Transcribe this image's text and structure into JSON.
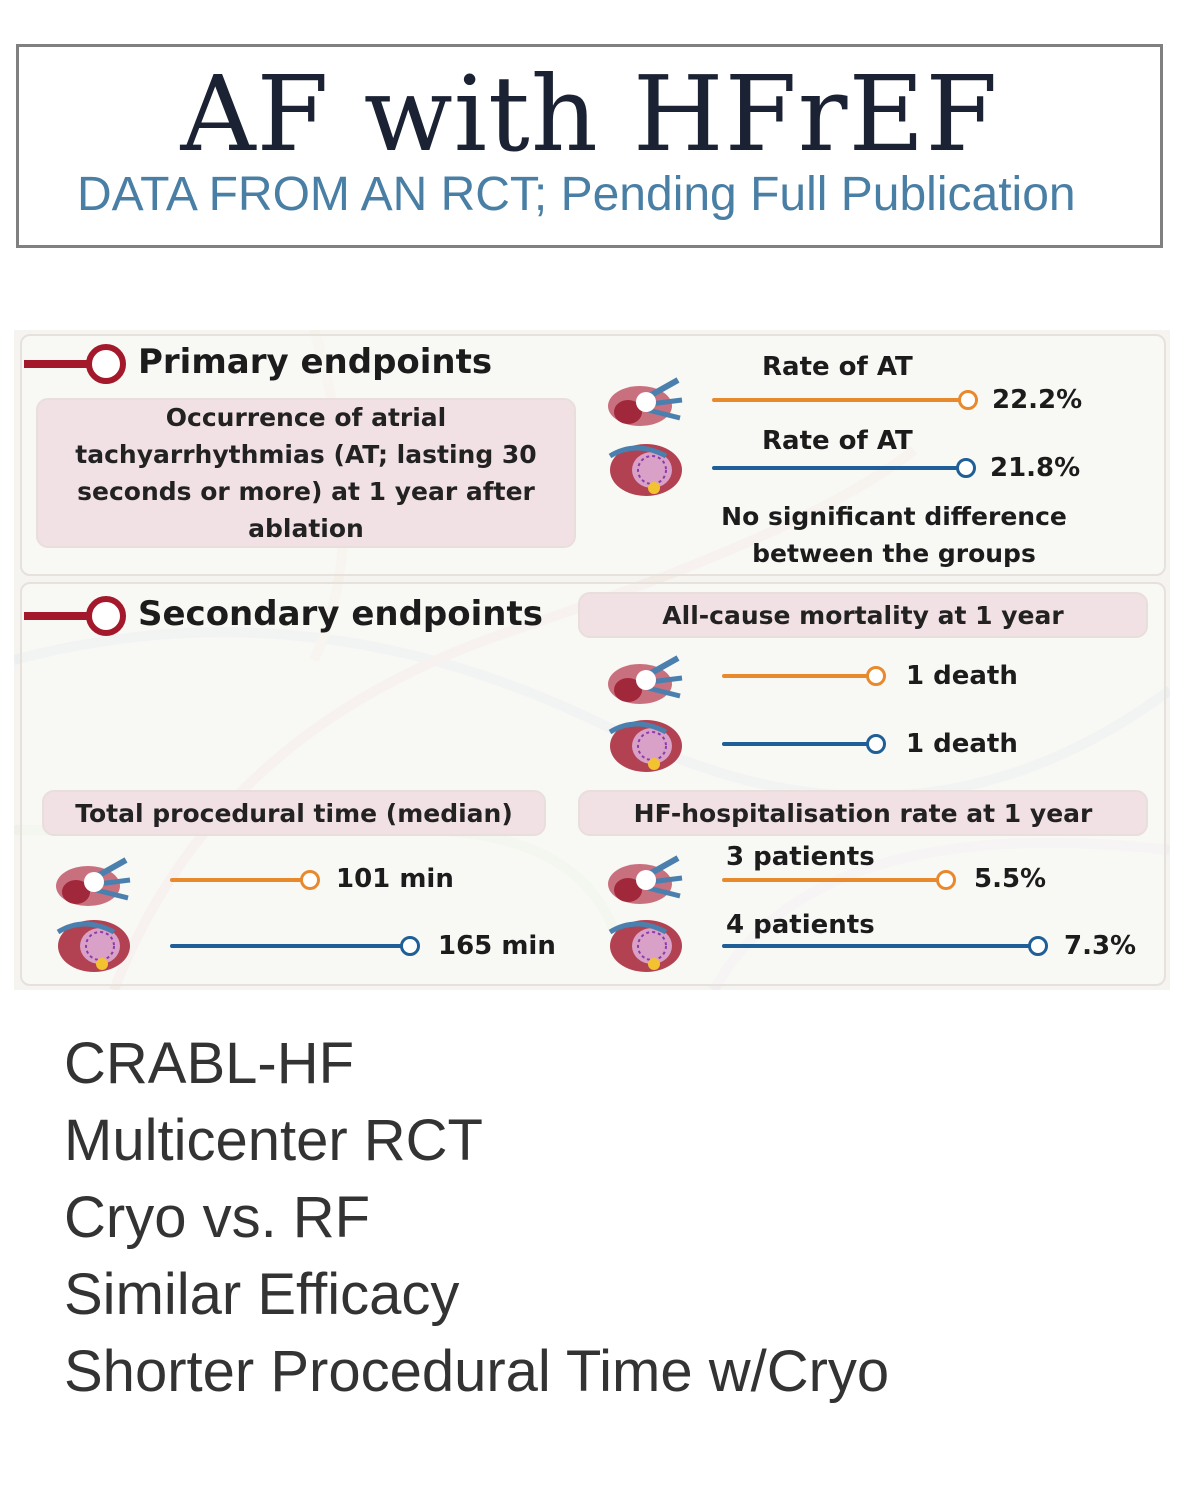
{
  "header": {
    "title": "AF with HFrEF",
    "subtitle": "DATA FROM AN RCT; Pending Full Publication"
  },
  "infographic": {
    "primary": {
      "heading": "Primary endpoints",
      "description": "Occurrence of atrial tachyarrhythmias (AT; lasting 30 seconds or more) at 1 year after ablation",
      "cryo_label": "Rate of  AT",
      "cryo_value": "22.2%",
      "rf_label": "Rate of  AT",
      "rf_value": "21.8%",
      "conclusion_line1": "No significant difference",
      "conclusion_line2": "between the groups"
    },
    "secondary": {
      "heading": "Secondary endpoints",
      "mortality": {
        "title": "All-cause mortality at 1 year",
        "cryo_value": "1 death",
        "rf_value": "1 death"
      },
      "procedural_time": {
        "title": "Total procedural time (median)",
        "cryo_value": "101 min",
        "rf_value": "165 min"
      },
      "hf_hospitalisation": {
        "title": "HF-hospitalisation rate at 1 year",
        "cryo_count": "3 patients",
        "cryo_value": "5.5%",
        "rf_count": "4 patients",
        "rf_value": "7.3%"
      }
    },
    "colors": {
      "cryo": "#e8892d",
      "rf": "#1f5e96",
      "marker": "#a3182a",
      "pill": "#f2e1e4"
    },
    "icons": [
      "cryoballoon-heart-icon",
      "radiofrequency-heart-icon"
    ]
  },
  "summary": {
    "lines": [
      "CRABL-HF",
      "Multicenter RCT",
      "Cryo vs. RF",
      "Similar Efficacy",
      "Shorter Procedural Time w/Cryo"
    ]
  }
}
